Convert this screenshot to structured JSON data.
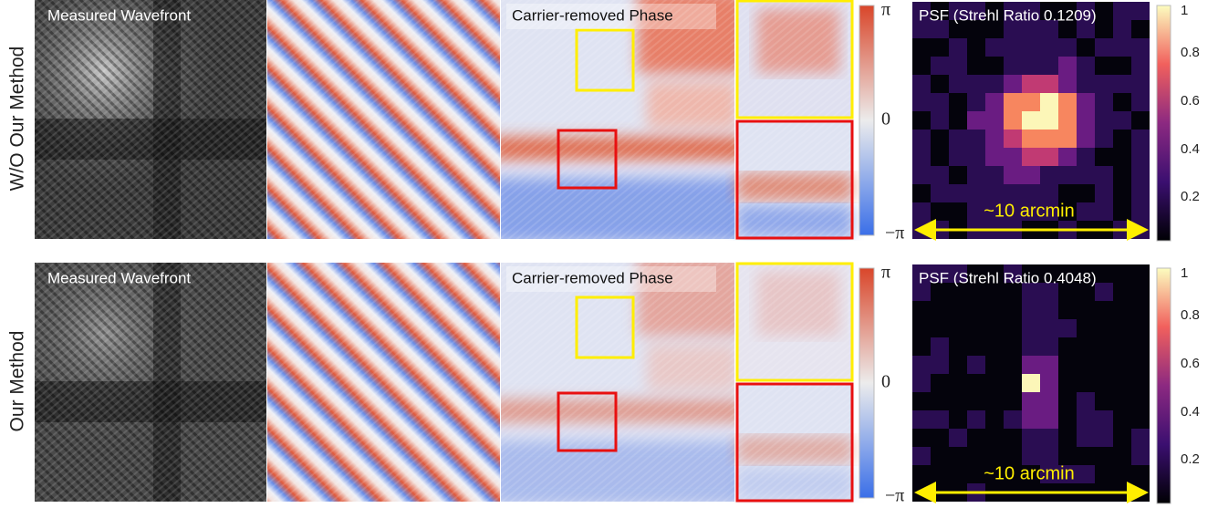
{
  "rows": [
    {
      "label": "W/O Our Method",
      "wavefront_label": "Measured Wavefront",
      "phase_label": "Carrier-removed Phase",
      "psf_label": "PSF (Strehl Ratio 0.1209)",
      "scale_label": "~10 arcmin"
    },
    {
      "label": "Our Method",
      "wavefront_label": "Measured Wavefront",
      "phase_label": "Carrier-removed Phase",
      "psf_label": "PSF (Strehl Ratio 0.4048)",
      "scale_label": "~10 arcmin"
    }
  ],
  "phase_colorbar": {
    "ticks": [
      "π",
      "0",
      "−π"
    ]
  },
  "psf_colorbar": {
    "ticks": [
      "1",
      "0.8",
      "0.6",
      "0.4",
      "0.2"
    ]
  }
}
